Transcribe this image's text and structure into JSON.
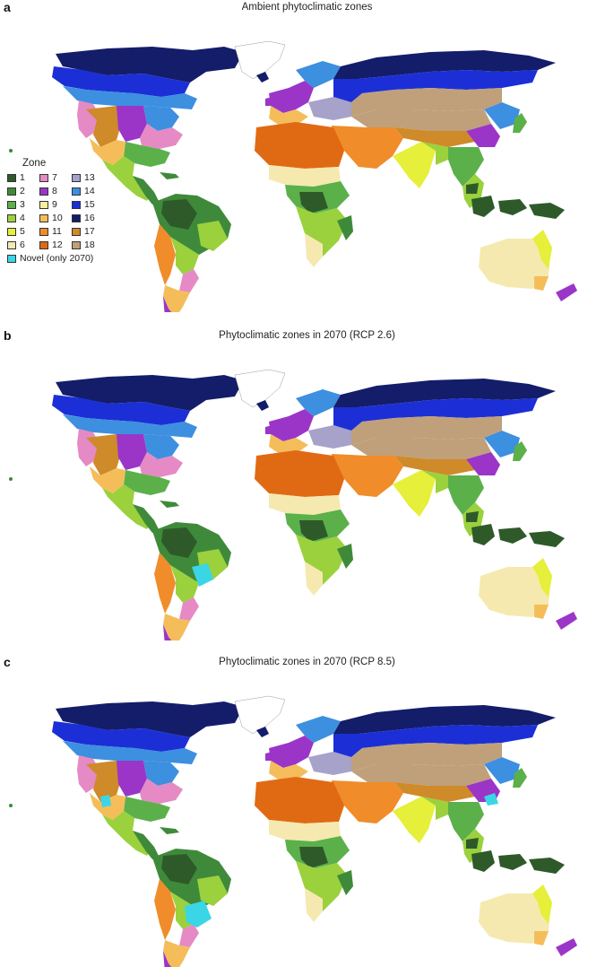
{
  "panels": [
    {
      "letter": "a",
      "title": "Ambient phytoclimatic zones"
    },
    {
      "letter": "b",
      "title": "Phytoclimatic zones in 2070 (RCP 2.6)"
    },
    {
      "letter": "c",
      "title": "Phytoclimatic zones in 2070 (RCP 8.5)"
    }
  ],
  "legend": {
    "title": "Zone",
    "items": [
      {
        "label": "1",
        "color": "#2e5a2a"
      },
      {
        "label": "2",
        "color": "#3f8a3a"
      },
      {
        "label": "3",
        "color": "#5bb04a"
      },
      {
        "label": "4",
        "color": "#9ad13d"
      },
      {
        "label": "5",
        "color": "#e6ef3a"
      },
      {
        "label": "6",
        "color": "#f5e9b0"
      },
      {
        "label": "7",
        "color": "#e58ac4"
      },
      {
        "label": "8",
        "color": "#9b35c8"
      },
      {
        "label": "9",
        "color": "#f6f0a0"
      },
      {
        "label": "10",
        "color": "#f5bd5a"
      },
      {
        "label": "11",
        "color": "#f08c2a"
      },
      {
        "label": "12",
        "color": "#e06a14"
      },
      {
        "label": "13",
        "color": "#a7a2c9"
      },
      {
        "label": "14",
        "color": "#3d8fe0"
      },
      {
        "label": "15",
        "color": "#1c2fd6"
      },
      {
        "label": "16",
        "color": "#141d6a"
      },
      {
        "label": "17",
        "color": "#cf8a2a"
      },
      {
        "label": "18",
        "color": "#bfa07a"
      }
    ],
    "novel": {
      "label": "Novel (only 2070)",
      "color": "#3ad6e6"
    }
  }
}
